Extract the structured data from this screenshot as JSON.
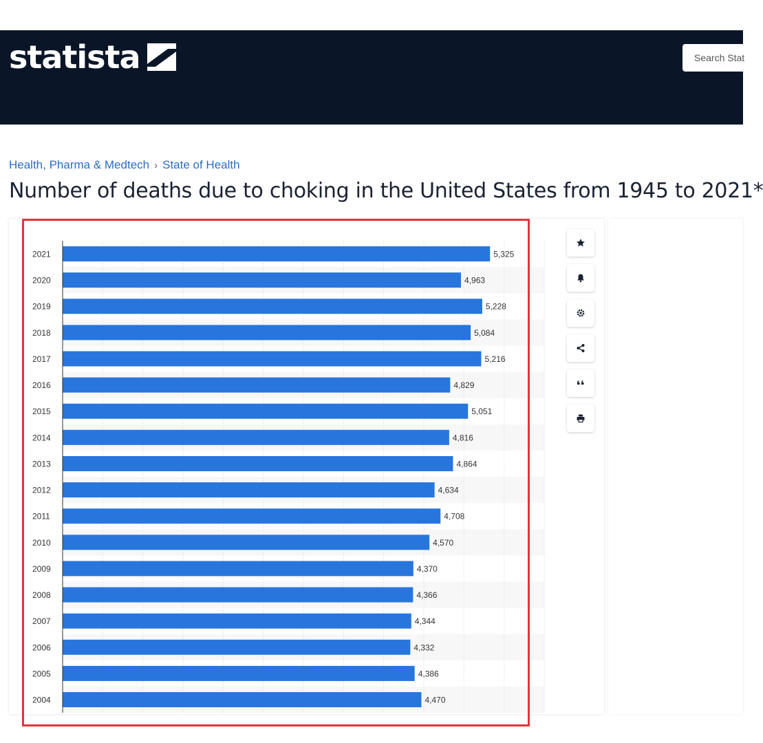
{
  "header": {
    "logo_text": "statista",
    "search_placeholder": "Search Stat"
  },
  "breadcrumb": [
    "Health, Pharma & Medtech",
    "State of Health"
  ],
  "breadcrumb_separator": "›",
  "page_title": "Number of deaths due to choking in the United States from 1945 to 2021*",
  "tools": [
    "star-icon",
    "bell-icon",
    "gear-icon",
    "share-icon",
    "quote-icon",
    "print-icon"
  ],
  "colors": {
    "bar": "#2876dd",
    "header_bg": "#0a1628",
    "highlight": "#e5333b",
    "link": "#2b6cc4"
  },
  "chart_data": {
    "type": "bar",
    "orientation": "horizontal",
    "categories": [
      "2021",
      "2020",
      "2019",
      "2018",
      "2017",
      "2016",
      "2015",
      "2014",
      "2013",
      "2012",
      "2011",
      "2010",
      "2009",
      "2008",
      "2007",
      "2006",
      "2005",
      "2004"
    ],
    "values": [
      5325,
      4963,
      5228,
      5084,
      5216,
      4829,
      5051,
      4816,
      4864,
      4634,
      4708,
      4570,
      4370,
      4366,
      4344,
      4332,
      4386,
      4470
    ],
    "value_labels": [
      "5,325",
      "4,963",
      "5,228",
      "5,084",
      "5,216",
      "4,829",
      "5,051",
      "4,816",
      "4,864",
      "4,634",
      "4,708",
      "4,570",
      "4,370",
      "4,366",
      "4,344",
      "4,332",
      "4,386",
      "4,470"
    ],
    "xlim": [
      0,
      6000
    ],
    "grid": true
  }
}
